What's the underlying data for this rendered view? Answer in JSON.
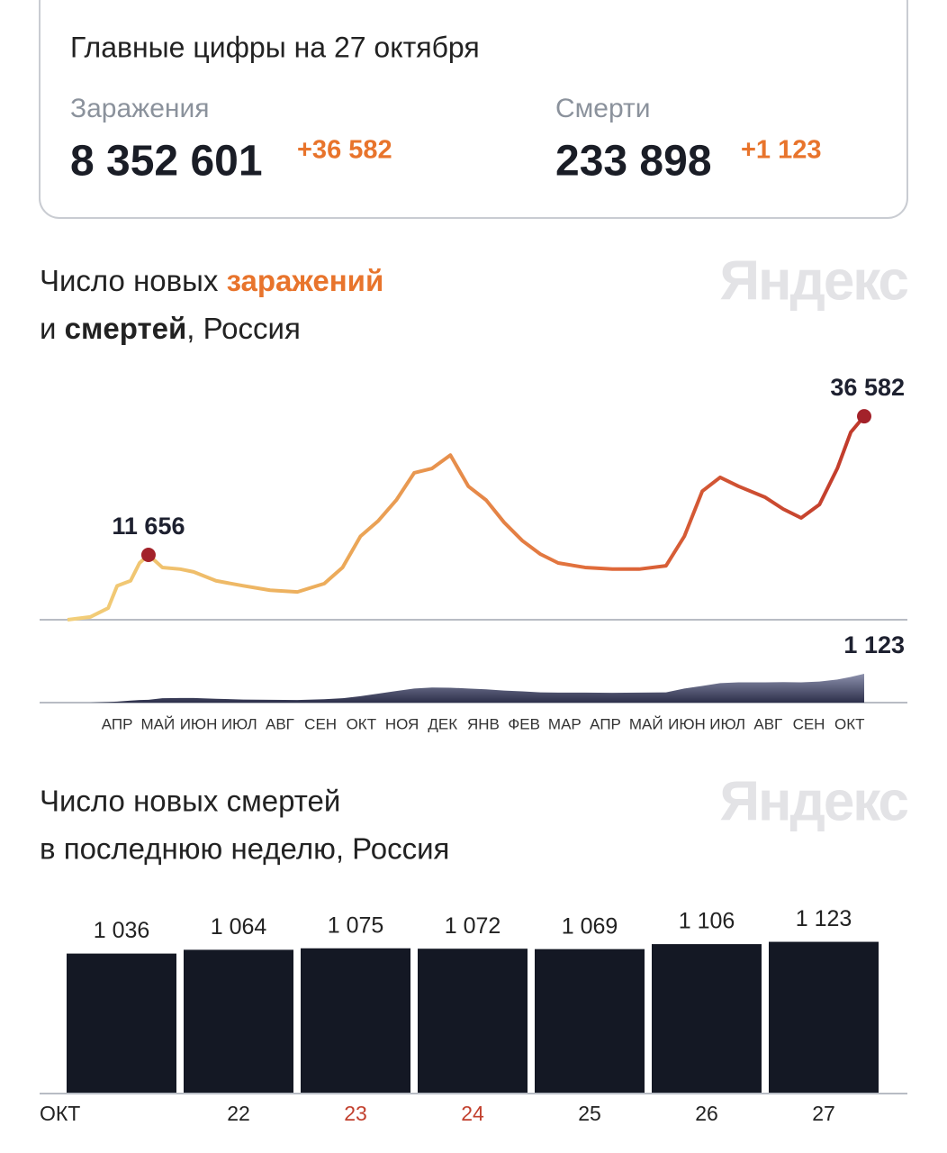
{
  "summary": {
    "title": "Главные цифры на 27 октября",
    "items": [
      {
        "label": "Заражения",
        "value": "8 352 601",
        "delta": "+36 582"
      },
      {
        "label": "Смерти",
        "value": "233 898",
        "delta": "+1 123"
      }
    ]
  },
  "chart_data": [
    {
      "type": "line",
      "title_lines": [
        [
          {
            "text": "Число новых "
          },
          {
            "text": "заражений",
            "bold": true,
            "color": "#e8742c"
          }
        ],
        [
          {
            "text": "и "
          },
          {
            "text": "смертей",
            "bold": true
          },
          {
            "text": ", Россия"
          }
        ]
      ],
      "watermark": "Яндекс",
      "x": [
        0.28,
        0.84,
        1.28,
        1.5,
        1.83,
        2.05,
        2.27,
        2.61,
        3.05,
        3.38,
        3.93,
        4.6,
        5.26,
        5.93,
        6.59,
        7.04,
        7.48,
        7.92,
        8.36,
        8.8,
        9.24,
        9.69,
        10.13,
        10.57,
        11.01,
        11.46,
        11.9,
        12.34,
        13.0,
        13.67,
        14.33,
        14.99,
        15.44,
        15.88,
        16.32,
        16.77,
        17.43,
        17.87,
        18.31,
        18.76,
        19.2,
        19.53,
        19.86
      ],
      "xlim": [
        0.28,
        19.86
      ],
      "xticks": [
        {
          "value": 1.5,
          "label": "АПР"
        },
        {
          "value": 2.5,
          "label": "МАЙ"
        },
        {
          "value": 3.5,
          "label": "ИЮН"
        },
        {
          "value": 4.5,
          "label": "ИЮЛ"
        },
        {
          "value": 5.5,
          "label": "АВГ"
        },
        {
          "value": 6.5,
          "label": "СЕН"
        },
        {
          "value": 7.5,
          "label": "ОКТ"
        },
        {
          "value": 8.5,
          "label": "НОЯ"
        },
        {
          "value": 9.5,
          "label": "ДЕК"
        },
        {
          "value": 10.5,
          "label": "ЯНВ"
        },
        {
          "value": 11.5,
          "label": "ФЕВ"
        },
        {
          "value": 12.5,
          "label": "МАР"
        },
        {
          "value": 13.5,
          "label": "АПР"
        },
        {
          "value": 14.5,
          "label": "МАЙ"
        },
        {
          "value": 15.5,
          "label": "ИЮН"
        },
        {
          "value": 16.5,
          "label": "ИЮЛ"
        },
        {
          "value": 17.5,
          "label": "АВГ"
        },
        {
          "value": 18.5,
          "label": "СЕН"
        },
        {
          "value": 19.5,
          "label": "ОКТ"
        }
      ],
      "series": [
        {
          "kind": "line",
          "colors": [
            "#f2cf7a",
            "#ecab5a",
            "#e06b3a",
            "#c0392b"
          ],
          "marker_color": "#a3222a",
          "ylim": [
            0,
            40000
          ],
          "values": [
            0,
            500,
            2100,
            6100,
            7000,
            10200,
            11656,
            9400,
            9100,
            8600,
            7000,
            6100,
            5300,
            5000,
            6500,
            9400,
            15000,
            17800,
            21500,
            26400,
            27200,
            29600,
            24000,
            21500,
            17500,
            14200,
            11800,
            10200,
            9400,
            9100,
            9100,
            9700,
            15000,
            23100,
            25600,
            24000,
            22000,
            19900,
            18300,
            20700,
            27200,
            33700,
            36582
          ],
          "value_labels": [
            null,
            null,
            null,
            null,
            null,
            null,
            "11 656",
            null,
            null,
            null,
            null,
            null,
            null,
            null,
            null,
            null,
            null,
            null,
            null,
            null,
            null,
            null,
            null,
            null,
            null,
            null,
            null,
            null,
            null,
            null,
            null,
            null,
            null,
            null,
            null,
            null,
            null,
            null,
            null,
            null,
            null,
            null,
            "36 582"
          ]
        },
        {
          "kind": "area",
          "colors": [
            "#8d91ad",
            "#2c2f4a"
          ],
          "ylim": [
            0,
            1250
          ],
          "values": [
            0,
            2,
            20,
            40,
            80,
            100,
            110,
            170,
            180,
            180,
            150,
            120,
            110,
            100,
            130,
            170,
            250,
            350,
            450,
            550,
            590,
            580,
            550,
            520,
            470,
            440,
            400,
            390,
            390,
            380,
            390,
            400,
            550,
            650,
            760,
            790,
            790,
            800,
            790,
            820,
            900,
            1000,
            1123
          ],
          "value_labels": [
            null,
            null,
            null,
            null,
            null,
            null,
            null,
            null,
            null,
            null,
            null,
            null,
            null,
            null,
            null,
            null,
            null,
            null,
            null,
            null,
            null,
            null,
            null,
            null,
            null,
            null,
            null,
            null,
            null,
            null,
            null,
            null,
            null,
            null,
            null,
            null,
            null,
            null,
            null,
            null,
            null,
            null,
            "1 123"
          ]
        }
      ]
    },
    {
      "type": "bar",
      "title_lines": [
        "Число новых смертей",
        "в последнюю неделю, Россия"
      ],
      "watermark": "Яндекс",
      "categories": [
        "ОКТ",
        "22",
        "23",
        "24",
        "25",
        "26",
        "27"
      ],
      "category_colors": [
        "#222222",
        "#222222",
        "#c2402e",
        "#c2402e",
        "#222222",
        "#222222",
        "#222222"
      ],
      "values": [
        1036,
        1064,
        1075,
        1072,
        1069,
        1106,
        1123
      ],
      "value_labels": [
        "1 036",
        "1 064",
        "1 075",
        "1 072",
        "1 069",
        "1 106",
        "1 123"
      ],
      "color": "#141824",
      "ylim": [
        0,
        1400
      ]
    }
  ]
}
